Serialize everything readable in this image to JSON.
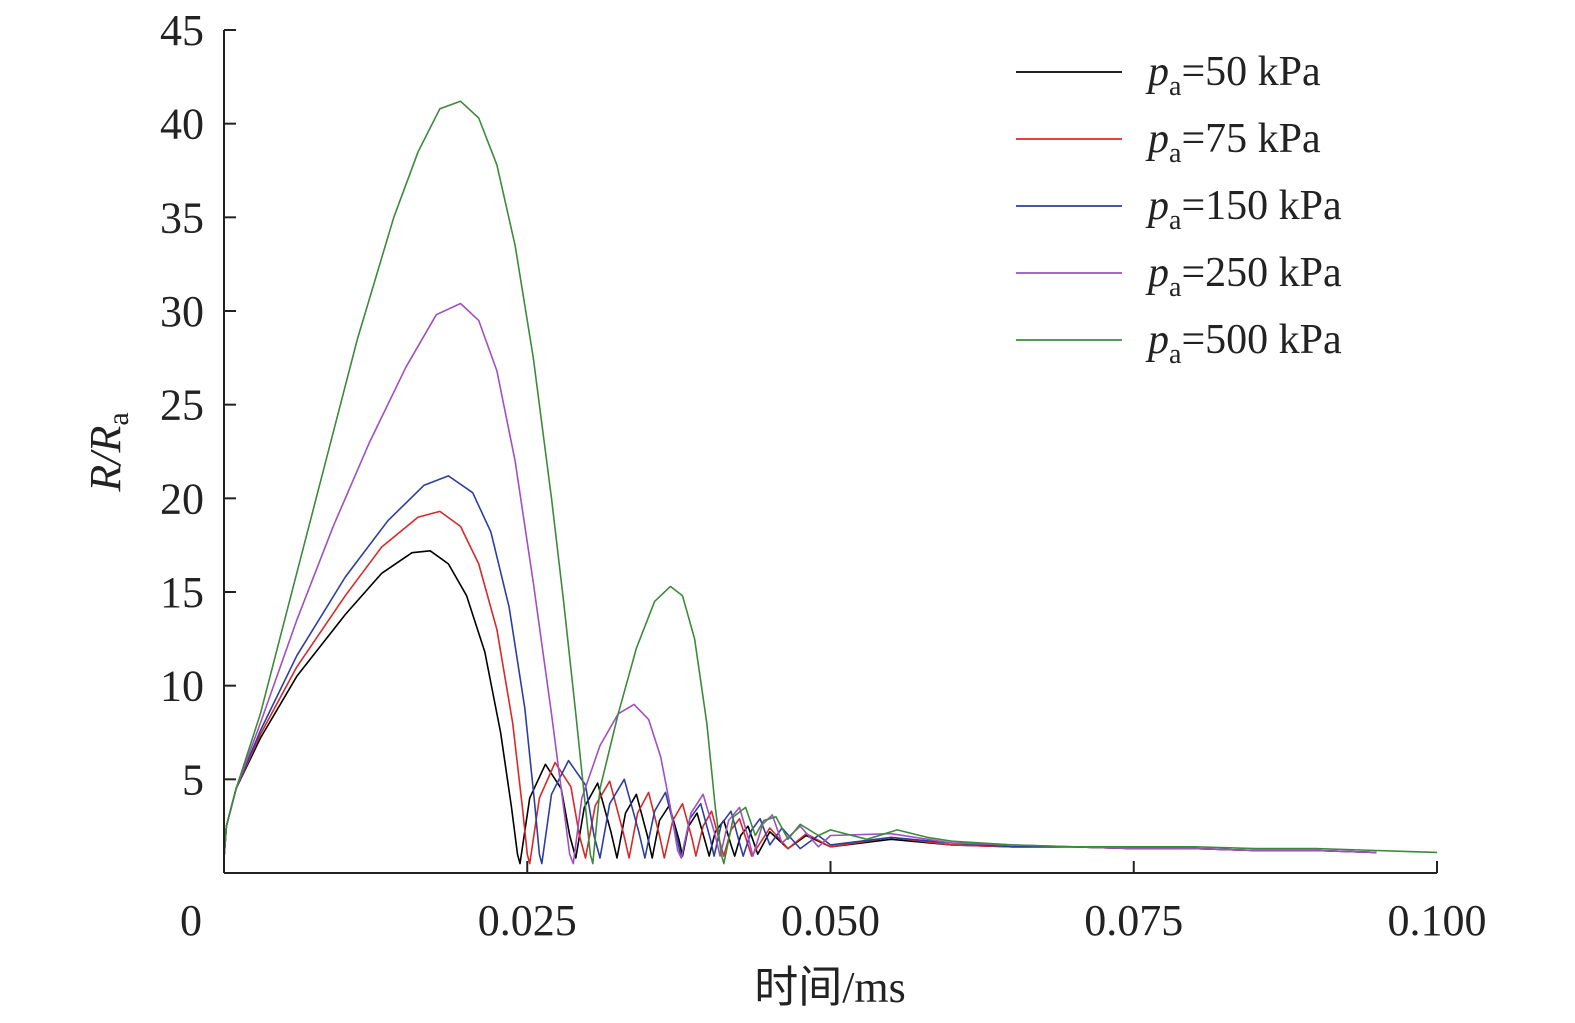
{
  "chart_data": {
    "type": "line",
    "xlabel": "时间/ms",
    "ylabel": {
      "main": "R/R",
      "sub": "a"
    },
    "xlim": [
      0,
      0.1
    ],
    "ylim": [
      0,
      45
    ],
    "x_ticks": [
      0,
      0.025,
      0.05,
      0.075,
      0.1
    ],
    "x_tick_labels": [
      "0",
      "0.025",
      "0.050",
      "0.075",
      "0.100"
    ],
    "y_ticks": [
      5,
      10,
      15,
      20,
      25,
      30,
      35,
      40,
      45
    ],
    "y_tick_labels": [
      "5",
      "10",
      "15",
      "20",
      "25",
      "30",
      "35",
      "40",
      "45"
    ],
    "grid": false,
    "legend_position": "top-right",
    "series": [
      {
        "name": "pa=50 kPa",
        "label_p": "p",
        "label_sub": "a",
        "label_rest": "=50 kPa",
        "color": "#000000",
        "x": [
          0,
          0.0002,
          0.001,
          0.003,
          0.006,
          0.01,
          0.013,
          0.0155,
          0.017,
          0.0185,
          0.02,
          0.0215,
          0.0228,
          0.0237,
          0.0242,
          0.0244,
          0.0252,
          0.0265,
          0.0278,
          0.0285,
          0.029,
          0.0297,
          0.0308,
          0.0319,
          0.0324,
          0.0331,
          0.034,
          0.0349,
          0.0353,
          0.0359,
          0.0367,
          0.0375,
          0.0378,
          0.0383,
          0.039,
          0.0397,
          0.04,
          0.0405,
          0.0412,
          0.0418,
          0.0421,
          0.0426,
          0.0432,
          0.0438,
          0.044,
          0.045,
          0.0465,
          0.048,
          0.05,
          0.055,
          0.06,
          0.065,
          0.07,
          0.075,
          0.08,
          0.085,
          0.09,
          0.095
        ],
        "y": [
          0.8,
          2.5,
          4.5,
          7.2,
          10.5,
          13.8,
          16.0,
          17.1,
          17.2,
          16.5,
          14.8,
          11.8,
          7.5,
          3.5,
          1.0,
          0.5,
          4.0,
          5.8,
          4.5,
          2.0,
          0.8,
          3.5,
          4.8,
          2.2,
          0.8,
          3.2,
          4.2,
          2.0,
          0.8,
          2.8,
          3.6,
          1.8,
          0.9,
          2.5,
          3.2,
          1.6,
          0.9,
          2.2,
          2.8,
          1.5,
          0.9,
          2.0,
          2.5,
          1.4,
          1.0,
          2.2,
          1.3,
          2.0,
          1.4,
          1.8,
          1.5,
          1.4,
          1.4,
          1.3,
          1.3,
          1.2,
          1.2,
          1.1
        ]
      },
      {
        "name": "pa=75 kPa",
        "label_p": "p",
        "label_sub": "a",
        "label_rest": "=75 kPa",
        "color": "#d62a2a",
        "x": [
          0,
          0.0002,
          0.001,
          0.003,
          0.006,
          0.01,
          0.013,
          0.016,
          0.0178,
          0.0195,
          0.021,
          0.0225,
          0.0238,
          0.0246,
          0.025,
          0.0252,
          0.026,
          0.0273,
          0.0286,
          0.0293,
          0.0298,
          0.0306,
          0.0318,
          0.0329,
          0.0334,
          0.0341,
          0.035,
          0.0359,
          0.0363,
          0.037,
          0.0378,
          0.0386,
          0.0389,
          0.0395,
          0.0402,
          0.0409,
          0.0412,
          0.0418,
          0.0425,
          0.0432,
          0.0435,
          0.045,
          0.0465,
          0.048,
          0.05,
          0.055,
          0.06,
          0.065,
          0.07,
          0.075,
          0.08,
          0.085,
          0.09,
          0.095
        ],
        "y": [
          0.8,
          2.5,
          4.5,
          7.4,
          11.0,
          14.8,
          17.4,
          19.0,
          19.3,
          18.5,
          16.5,
          13.0,
          8.0,
          3.5,
          1.0,
          0.5,
          4.0,
          5.9,
          4.6,
          2.0,
          0.8,
          3.6,
          4.9,
          2.2,
          0.8,
          3.2,
          4.3,
          2.0,
          0.8,
          2.8,
          3.7,
          1.8,
          0.9,
          2.5,
          3.3,
          1.6,
          0.9,
          2.3,
          2.9,
          1.5,
          0.9,
          2.4,
          1.3,
          2.1,
          1.4,
          1.9,
          1.5,
          1.4,
          1.4,
          1.3,
          1.3,
          1.2,
          1.2,
          1.1
        ]
      },
      {
        "name": "pa=150 kPa",
        "label_p": "p",
        "label_sub": "a",
        "label_rest": "=150 kPa",
        "color": "#2c3f9e",
        "x": [
          0,
          0.0002,
          0.001,
          0.003,
          0.006,
          0.01,
          0.0135,
          0.0165,
          0.0185,
          0.0205,
          0.022,
          0.0235,
          0.0248,
          0.0256,
          0.026,
          0.0262,
          0.027,
          0.0284,
          0.0298,
          0.0305,
          0.031,
          0.0318,
          0.033,
          0.0342,
          0.0347,
          0.0355,
          0.0364,
          0.0373,
          0.0377,
          0.0384,
          0.0393,
          0.0401,
          0.0404,
          0.041,
          0.0418,
          0.0425,
          0.0428,
          0.0435,
          0.0442,
          0.045,
          0.046,
          0.0475,
          0.049,
          0.05,
          0.055,
          0.06,
          0.065,
          0.07,
          0.075,
          0.08,
          0.085,
          0.09,
          0.095
        ],
        "y": [
          0.8,
          2.5,
          4.5,
          7.6,
          11.6,
          15.8,
          18.8,
          20.7,
          21.2,
          20.3,
          18.2,
          14.2,
          8.8,
          3.8,
          1.0,
          0.5,
          4.2,
          6.0,
          4.7,
          2.0,
          0.8,
          3.7,
          5.0,
          2.2,
          0.8,
          3.3,
          4.3,
          2.0,
          0.8,
          2.9,
          3.7,
          1.8,
          0.9,
          2.6,
          3.3,
          1.6,
          0.9,
          2.3,
          2.9,
          1.5,
          2.4,
          1.3,
          2.0,
          1.5,
          1.9,
          1.6,
          1.4,
          1.4,
          1.3,
          1.3,
          1.2,
          1.2,
          1.1
        ]
      },
      {
        "name": "pa=250 kPa",
        "label_p": "p",
        "label_sub": "a",
        "label_rest": "=250 kPa",
        "color": "#a050c0",
        "x": [
          0,
          0.0002,
          0.001,
          0.003,
          0.006,
          0.009,
          0.012,
          0.015,
          0.0175,
          0.0195,
          0.021,
          0.0225,
          0.024,
          0.0255,
          0.027,
          0.028,
          0.0285,
          0.0288,
          0.0295,
          0.031,
          0.0325,
          0.0338,
          0.035,
          0.036,
          0.0368,
          0.0374,
          0.0377,
          0.0385,
          0.0395,
          0.0405,
          0.0409,
          0.0416,
          0.0425,
          0.0433,
          0.0436,
          0.0444,
          0.0452,
          0.046,
          0.0475,
          0.049,
          0.05,
          0.055,
          0.06,
          0.065,
          0.07,
          0.075,
          0.08,
          0.085,
          0.09,
          0.095
        ],
        "y": [
          0.8,
          2.5,
          4.5,
          8.0,
          13.5,
          18.5,
          23.0,
          27.0,
          29.8,
          30.4,
          29.5,
          26.8,
          22.0,
          15.5,
          8.5,
          3.5,
          1.0,
          0.5,
          4.0,
          6.8,
          8.5,
          9.0,
          8.2,
          6.2,
          3.5,
          1.2,
          0.8,
          3.2,
          4.2,
          2.0,
          0.9,
          2.8,
          3.5,
          1.7,
          0.9,
          2.6,
          3.1,
          1.6,
          2.5,
          1.4,
          2.0,
          2.1,
          1.6,
          1.5,
          1.4,
          1.3,
          1.3,
          1.2,
          1.2,
          1.1
        ]
      },
      {
        "name": "pa=500 kPa",
        "label_p": "p",
        "label_sub": "a",
        "label_rest": "=500 kPa",
        "color": "#3d8a3d",
        "x": [
          0,
          0.0002,
          0.001,
          0.003,
          0.005,
          0.008,
          0.011,
          0.014,
          0.016,
          0.0178,
          0.0195,
          0.021,
          0.0225,
          0.024,
          0.0255,
          0.027,
          0.028,
          0.029,
          0.0298,
          0.0302,
          0.0304,
          0.031,
          0.0325,
          0.034,
          0.0355,
          0.0368,
          0.0378,
          0.0388,
          0.0398,
          0.0405,
          0.041,
          0.0412,
          0.042,
          0.043,
          0.0438,
          0.0445,
          0.0455,
          0.0465,
          0.0475,
          0.049,
          0.05,
          0.053,
          0.0555,
          0.058,
          0.06,
          0.065,
          0.07,
          0.075,
          0.08,
          0.085,
          0.09,
          0.095,
          0.1
        ],
        "y": [
          0.8,
          2.5,
          4.5,
          8.5,
          13.5,
          21.0,
          28.5,
          35.0,
          38.5,
          40.8,
          41.2,
          40.3,
          37.8,
          33.5,
          27.5,
          20.0,
          14.5,
          8.5,
          3.5,
          1.0,
          0.5,
          4.5,
          8.5,
          12.0,
          14.5,
          15.3,
          14.8,
          12.5,
          8.0,
          3.5,
          1.0,
          0.5,
          3.0,
          3.5,
          2.0,
          2.8,
          3.0,
          1.8,
          2.6,
          2.0,
          2.3,
          1.8,
          2.3,
          1.9,
          1.7,
          1.5,
          1.4,
          1.4,
          1.4,
          1.3,
          1.3,
          1.2,
          1.1
        ]
      }
    ]
  }
}
